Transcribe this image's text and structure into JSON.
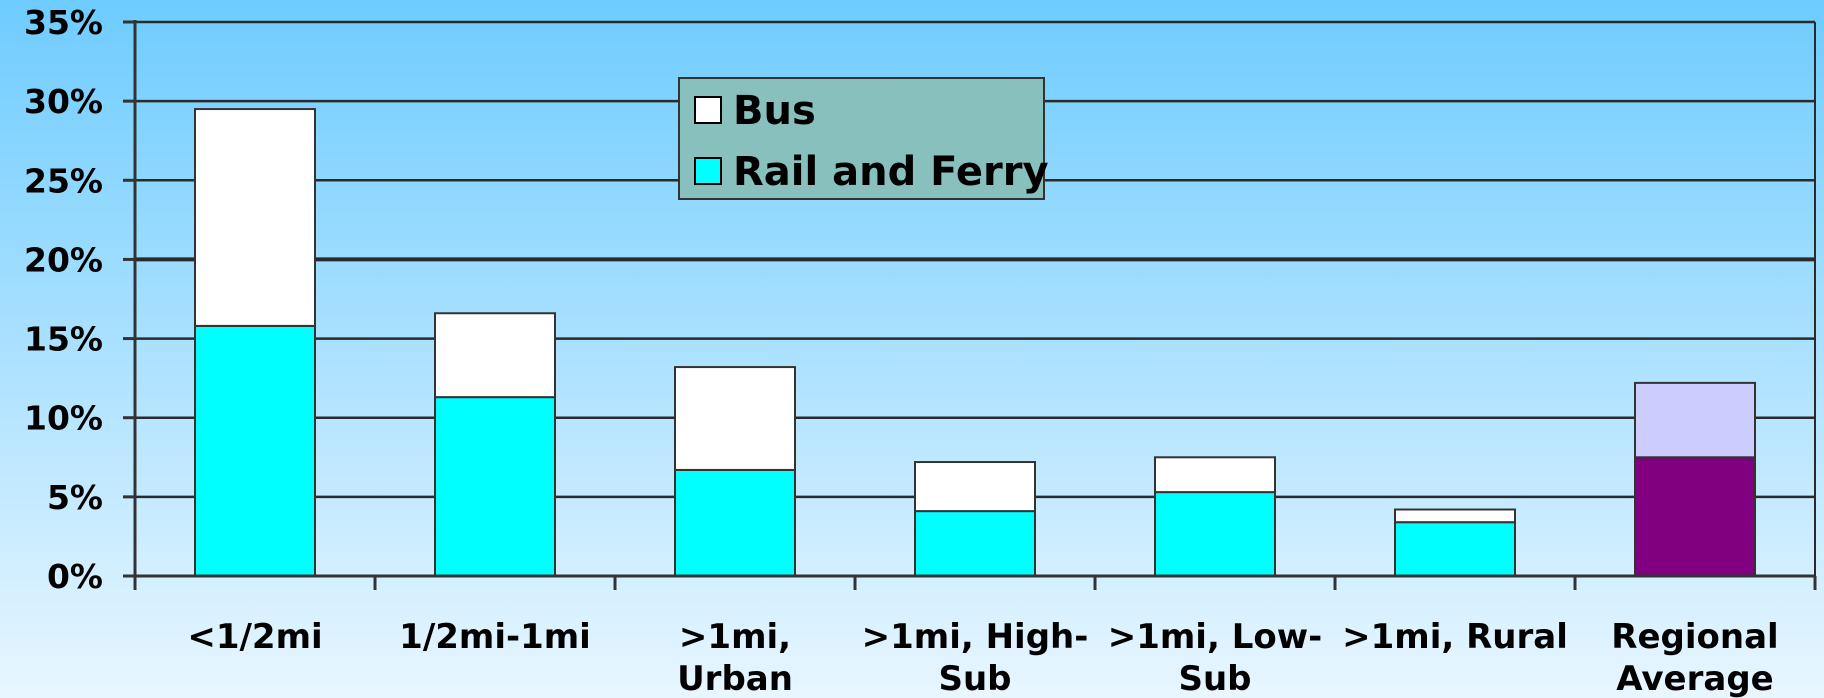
{
  "chart_data": {
    "type": "bar",
    "stacked": true,
    "categories": [
      [
        "<1/2mi"
      ],
      [
        "1/2mi-1mi"
      ],
      [
        ">1mi,",
        "Urban"
      ],
      [
        ">1mi, High-",
        "Sub"
      ],
      [
        ">1mi, Low-",
        "Sub"
      ],
      [
        ">1mi, Rural"
      ],
      [
        "Regional",
        "Average"
      ]
    ],
    "series": [
      {
        "name": "Rail and Ferry",
        "values": [
          15.8,
          11.3,
          6.7,
          4.1,
          5.3,
          3.4,
          7.5
        ],
        "color": "#00FFFF",
        "highlight_color": "#800080"
      },
      {
        "name": "Bus",
        "values": [
          13.7,
          5.3,
          6.5,
          3.1,
          2.2,
          0.8,
          4.7
        ],
        "color": "#FFFFFF",
        "highlight_color": "#CCCCFF"
      }
    ],
    "highlight_index": 6,
    "ylim": [
      0,
      35
    ],
    "yticks": [
      0,
      5,
      10,
      15,
      20,
      25,
      30,
      35
    ],
    "ytick_labels": [
      "0%",
      "5%",
      "10%",
      "15%",
      "20%",
      "25%",
      "30%",
      "35%"
    ],
    "grid": true,
    "legend": {
      "placement": "top-center",
      "entries": [
        "Bus",
        "Rail and Ferry"
      ],
      "background": "#88C0BD"
    },
    "background_gradient": [
      "#6ECCFF",
      "#E8F6FF"
    ],
    "title": "",
    "xlabel": "",
    "ylabel": ""
  }
}
